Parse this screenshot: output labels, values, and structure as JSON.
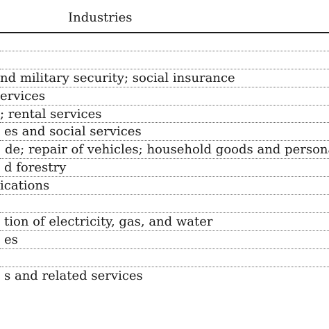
{
  "table": {
    "header": "Industries",
    "rows": [
      "",
      "",
      "nd military security; social insurance",
      "ervices",
      "; rental services",
      "es and social services",
      "de; repair of vehicles; household goods and persona",
      "d forestry",
      "ications",
      "",
      "tion of electricity, gas, and water",
      "es",
      "",
      "s and related services"
    ]
  }
}
